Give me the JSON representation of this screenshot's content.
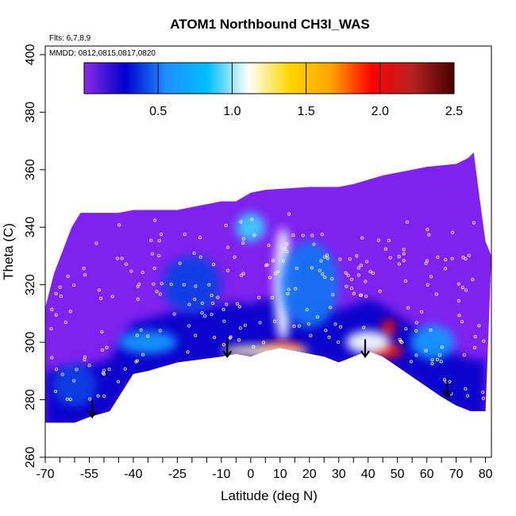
{
  "chart_data": {
    "type": "heatmap",
    "title": "ATOM1 Northbound CH3I_WAS",
    "annotations": [
      "Flts: 6,7,8,9",
      "MMDD: 0812,0815,0817,0820"
    ],
    "xlabel": "Latitude (deg N)",
    "ylabel": "Theta (C)",
    "xlim": [
      -70,
      82
    ],
    "ylim": [
      260,
      403
    ],
    "x_ticks": [
      -70,
      -55,
      -40,
      -25,
      -10,
      0,
      10,
      20,
      30,
      40,
      50,
      60,
      70,
      80
    ],
    "x_tick_labels": [
      "-70",
      "-55",
      "-40",
      "-25",
      "-10",
      "0",
      "10",
      "20",
      "30",
      "40",
      "50",
      "60",
      "70",
      "80"
    ],
    "x_minor_ticks": [
      -65,
      -60,
      -50,
      -45,
      -35,
      -30,
      -20,
      -15,
      -5,
      5,
      15,
      25,
      35,
      45,
      55,
      65,
      75
    ],
    "y_ticks": [
      260,
      280,
      300,
      320,
      340,
      360,
      380,
      400
    ],
    "y_tick_labels": [
      "260",
      "280",
      "300",
      "320",
      "340",
      "360",
      "380",
      "400"
    ],
    "colorbar": {
      "range": [
        0,
        2.5
      ],
      "ticks": [
        0.5,
        1.0,
        1.5,
        2.0,
        2.5
      ],
      "tick_labels": [
        "0.5",
        "1.0",
        "1.5",
        "2.0",
        "2.5"
      ],
      "colors": [
        "#8a2be2",
        "#0000cd",
        "#1e90ff",
        "#00bfff",
        "#ffffff",
        "#ffd700",
        "#ffa500",
        "#ff0000",
        "#b22222",
        "#4a0000"
      ]
    },
    "grid": false,
    "arrows_lat": [
      -54,
      -8,
      39,
      67
    ],
    "arrows_theta_tip": [
      274,
      295,
      295,
      281
    ],
    "upper_boundary": [
      [
        -70,
        312
      ],
      [
        -67,
        324
      ],
      [
        -64,
        332
      ],
      [
        -61,
        340
      ],
      [
        -58,
        345
      ],
      [
        -45,
        345
      ],
      [
        -40,
        346
      ],
      [
        -25,
        346
      ],
      [
        -15,
        348
      ],
      [
        -10,
        349
      ],
      [
        -5,
        349
      ],
      [
        0,
        352
      ],
      [
        5,
        353
      ],
      [
        20,
        354
      ],
      [
        30,
        354
      ],
      [
        35,
        355
      ],
      [
        45,
        358
      ],
      [
        50,
        359
      ],
      [
        60,
        361
      ],
      [
        70,
        362
      ],
      [
        74,
        364
      ],
      [
        76,
        366
      ],
      [
        78,
        350
      ],
      [
        80,
        335
      ],
      [
        82,
        330
      ]
    ],
    "lower_boundary": [
      [
        -70,
        272
      ],
      [
        -60,
        272
      ],
      [
        -55,
        274
      ],
      [
        -48,
        276
      ],
      [
        -40,
        289
      ],
      [
        -35,
        290
      ],
      [
        -25,
        293
      ],
      [
        -10,
        295
      ],
      [
        -5,
        296
      ],
      [
        0,
        295
      ],
      [
        5,
        297
      ],
      [
        10,
        298
      ],
      [
        15,
        297
      ],
      [
        20,
        296
      ],
      [
        25,
        295
      ],
      [
        30,
        293
      ],
      [
        40,
        297
      ],
      [
        45,
        295
      ],
      [
        55,
        288
      ],
      [
        65,
        281
      ],
      [
        70,
        278
      ],
      [
        75,
        276
      ],
      [
        80,
        276
      ]
    ],
    "high_values": [
      {
        "lat": 0,
        "theta": 340,
        "w": 10,
        "h": 10,
        "v": 0.9
      },
      {
        "lat": 11,
        "theta": 320,
        "w": 6,
        "h": 40,
        "v": 1.1
      },
      {
        "lat": 11,
        "theta": 298,
        "w": 14,
        "h": 4,
        "v": 1.9
      },
      {
        "lat": 5,
        "theta": 297,
        "w": 30,
        "h": 4,
        "v": 1.2
      },
      {
        "lat": 47,
        "theta": 305,
        "w": 5,
        "h": 6,
        "v": 2.0
      },
      {
        "lat": 46,
        "theta": 297,
        "w": 12,
        "h": 5,
        "v": 1.9
      },
      {
        "lat": 40,
        "theta": 300,
        "w": 15,
        "h": 8,
        "v": 1.1
      },
      {
        "lat": -35,
        "theta": 300,
        "w": 20,
        "h": 8,
        "v": 0.6
      },
      {
        "lat": 62,
        "theta": 300,
        "w": 15,
        "h": 12,
        "v": 0.6
      },
      {
        "lat": -60,
        "theta": 285,
        "w": 15,
        "h": 15,
        "v": 0.4
      },
      {
        "lat": 20,
        "theta": 320,
        "w": 20,
        "h": 30,
        "v": 0.5
      },
      {
        "lat": -20,
        "theta": 320,
        "w": 20,
        "h": 20,
        "v": 0.4
      }
    ]
  }
}
